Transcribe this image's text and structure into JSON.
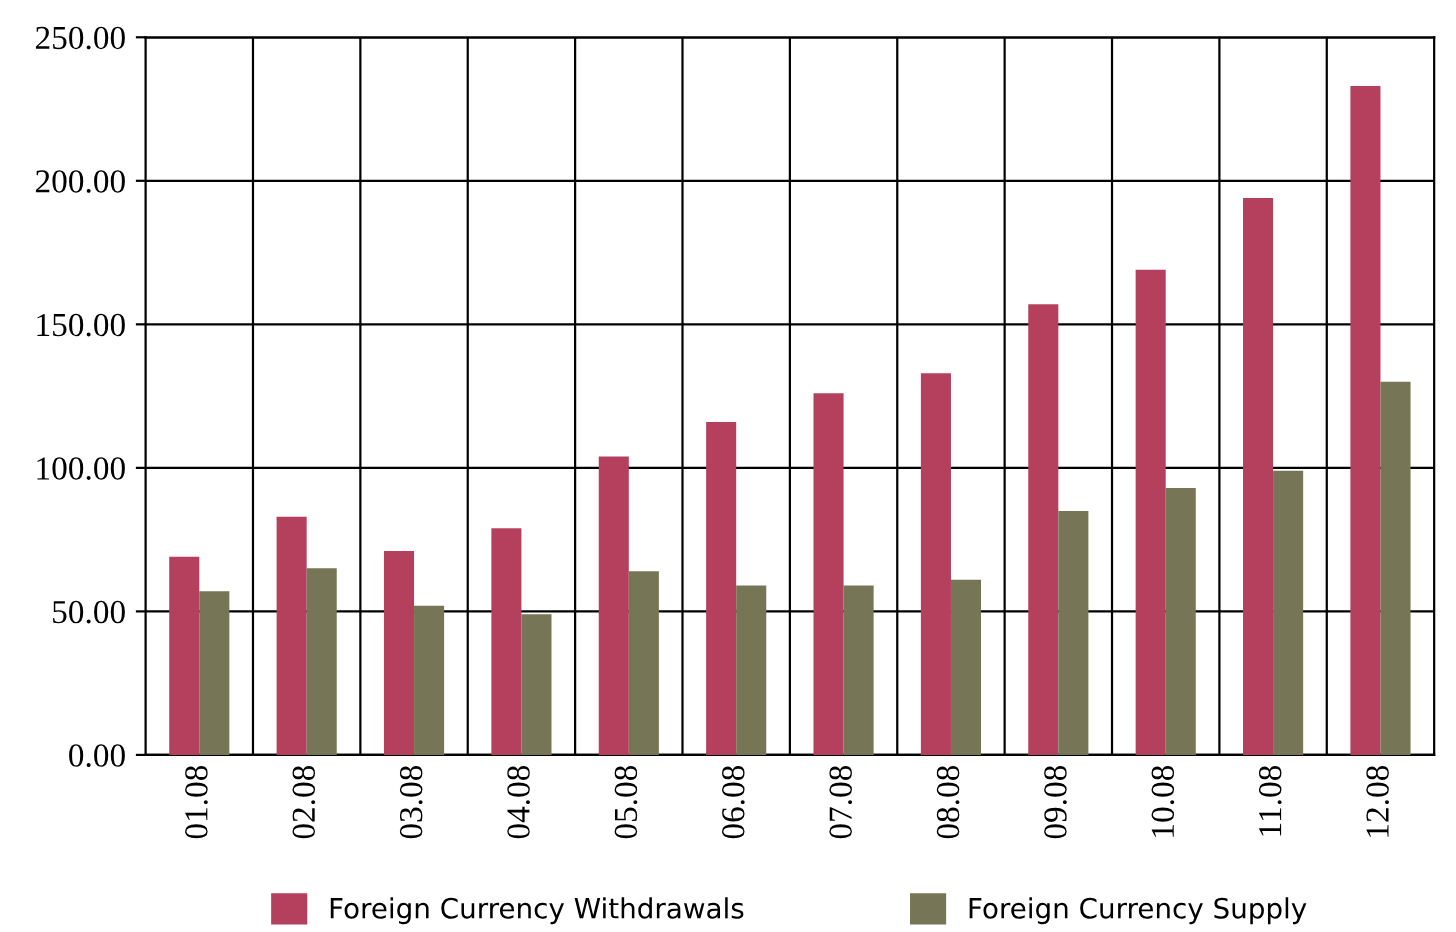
{
  "chart_data": {
    "type": "bar",
    "categories": [
      "01.08",
      "02.08",
      "03.08",
      "04.08",
      "05.08",
      "06.08",
      "07.08",
      "08.08",
      "09.08",
      "10.08",
      "11.08",
      "12.08"
    ],
    "series": [
      {
        "name": "Foreign Currency Withdrawals",
        "color": "#b5405e",
        "values": [
          69,
          83,
          71,
          79,
          104,
          116,
          126,
          133,
          157,
          169,
          194,
          233
        ]
      },
      {
        "name": "Foreign Currency Supply",
        "color": "#767656",
        "values": [
          57,
          65,
          52,
          49,
          64,
          59,
          59,
          61,
          85,
          93,
          99,
          130
        ]
      }
    ],
    "ylim": [
      0,
      250
    ],
    "yticks": [
      {
        "value": 0,
        "label": "0.00"
      },
      {
        "value": 50,
        "label": "50.00"
      },
      {
        "value": 100,
        "label": "100.00"
      },
      {
        "value": 150,
        "label": "150.00"
      },
      {
        "value": 200,
        "label": "200.00"
      },
      {
        "value": 250,
        "label": "250.00"
      }
    ],
    "grid": true,
    "legend": "bottom"
  }
}
